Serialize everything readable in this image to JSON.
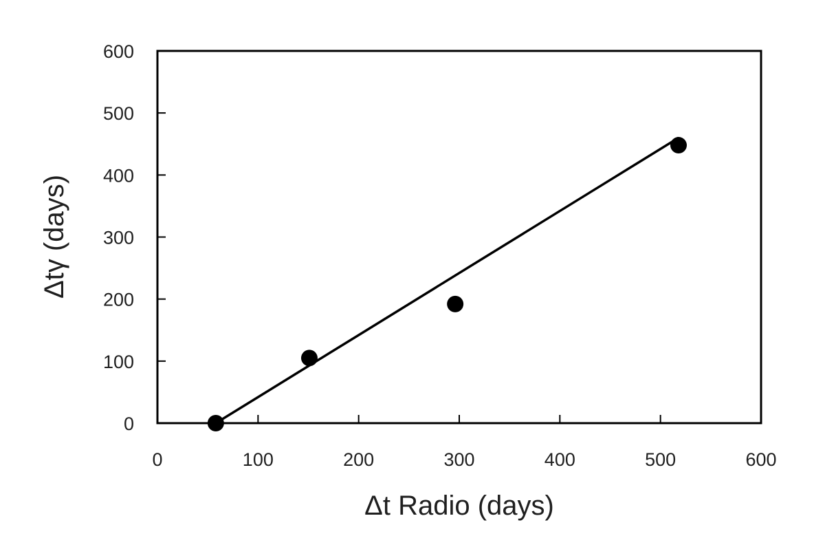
{
  "chart_data": {
    "type": "scatter",
    "title": "",
    "xlabel": "Δt Radio (days)",
    "ylabel": "Δtγ (days)",
    "xlim": [
      0,
      600
    ],
    "ylim": [
      0,
      600
    ],
    "x_ticks": [
      0,
      100,
      200,
      300,
      400,
      500,
      600
    ],
    "y_ticks": [
      0,
      100,
      200,
      300,
      400,
      500,
      600
    ],
    "grid": false,
    "legend": "none",
    "series": [
      {
        "points": [
          {
            "x": 58,
            "y": 0
          },
          {
            "x": 151,
            "y": 105
          },
          {
            "x": 296,
            "y": 192
          },
          {
            "x": 518,
            "y": 448
          }
        ]
      }
    ],
    "fit_line": {
      "x": [
        58,
        518
      ],
      "y": [
        0,
        460
      ]
    },
    "colors": {
      "marker": "#000000",
      "line": "#000000",
      "frame": "#000000"
    }
  }
}
